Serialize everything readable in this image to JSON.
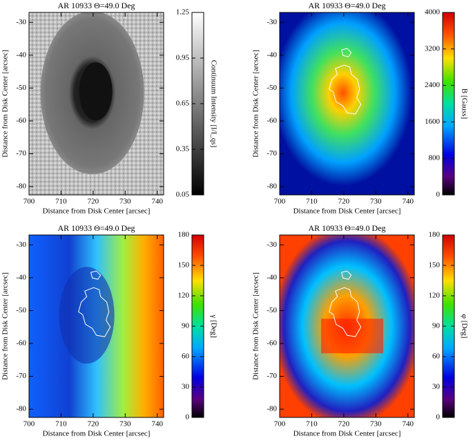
{
  "chart_data": [
    {
      "type": "image",
      "title": "AR 10933 Θ=49.0 Deg",
      "xlabel": "Distance from Disk Center [arcsec]",
      "ylabel": "Distance from Disk Center [arcsec]",
      "xlim": [
        700,
        742
      ],
      "xticks": [
        700,
        710,
        720,
        730,
        740
      ],
      "ylim": [
        -82.5,
        -27
      ],
      "yticks": [
        -30,
        -40,
        -50,
        -60,
        -70,
        -80
      ],
      "colorbar_label": "Continuum Intensity [I/I_qs]",
      "colorbar_lim": [
        0.05,
        1.25
      ],
      "colorbar_ticks": [
        0.05,
        0.35,
        0.65,
        0.95,
        1.25
      ],
      "colormap": "gray"
    },
    {
      "type": "image",
      "title": "AR 10933 Θ=49.0 Deg",
      "xlabel": "Distance from Disk Center [arcsec]",
      "ylabel": "Distance from Disk Center [arcsec]",
      "xlim": [
        700,
        742
      ],
      "xticks": [
        700,
        710,
        720,
        730,
        740
      ],
      "ylim": [
        -82.5,
        -27
      ],
      "yticks": [
        -30,
        -40,
        -50,
        -60,
        -70,
        -80
      ],
      "colorbar_label": "B [Gauss]",
      "colorbar_lim": [
        0,
        4000
      ],
      "colorbar_ticks": [
        0,
        800,
        1600,
        2400,
        3200,
        4000
      ],
      "colormap": "rainbow"
    },
    {
      "type": "image",
      "title": "AR 10933 Θ=49.0 Deg",
      "xlabel": "Distance from Disk Center [arcsec]",
      "ylabel": "Distance from Disk Center [arcsec]",
      "xlim": [
        700,
        742
      ],
      "xticks": [
        700,
        710,
        720,
        730,
        740
      ],
      "ylim": [
        -82.5,
        -27
      ],
      "yticks": [
        -30,
        -40,
        -50,
        -60,
        -70,
        -80
      ],
      "colorbar_label": "γ [Deg]",
      "colorbar_lim": [
        0,
        180
      ],
      "colorbar_ticks": [
        0,
        30,
        60,
        90,
        120,
        150,
        180
      ],
      "colormap": "rainbow"
    },
    {
      "type": "image",
      "title": "AR 10933 Θ=49.0 Deg",
      "xlabel": "Distance from Disk Center [arcsec]",
      "ylabel": "Distance from Disk Center [arcsec]",
      "xlim": [
        700,
        742
      ],
      "xticks": [
        700,
        710,
        720,
        730,
        740
      ],
      "ylim": [
        -82.5,
        -27
      ],
      "yticks": [
        -30,
        -40,
        -50,
        -60,
        -70,
        -80
      ],
      "colorbar_label": "φ [Deg]",
      "colorbar_lim": [
        0,
        180
      ],
      "colorbar_ticks": [
        0,
        30,
        60,
        90,
        120,
        150,
        180
      ],
      "colormap": "rainbow"
    }
  ]
}
